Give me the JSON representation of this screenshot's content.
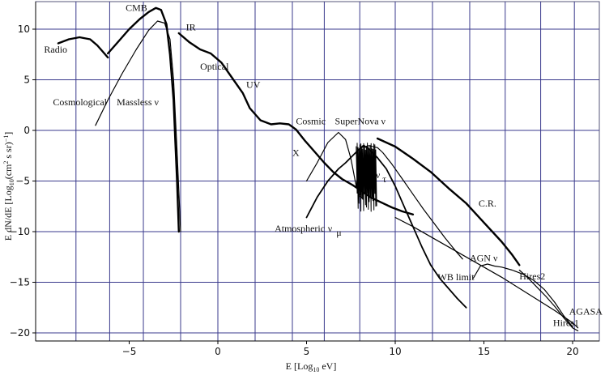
{
  "chart_data": {
    "type": "line",
    "xlabel": "E [Log10 eV]",
    "ylabel": "E dN/dE [Log10(cm^2 s sr)^-1]",
    "xlim": [
      -9.5,
      21
    ],
    "ylim": [
      -20.5,
      12.8
    ],
    "grid": true,
    "x_ticks": [
      {
        "value": -5,
        "label": "−5"
      },
      {
        "value": 0,
        "label": "0"
      },
      {
        "value": 5,
        "label": "5"
      },
      {
        "value": 10,
        "label": "10"
      },
      {
        "value": 15,
        "label": "15"
      },
      {
        "value": 20,
        "label": "20"
      }
    ],
    "y_ticks": [
      {
        "value": 10,
        "label": "10"
      },
      {
        "value": 5,
        "label": "5"
      },
      {
        "value": 0,
        "label": "0"
      },
      {
        "value": -5,
        "label": "−5"
      },
      {
        "value": -10,
        "label": "−10"
      },
      {
        "value": -15,
        "label": "−15"
      },
      {
        "value": -20,
        "label": "−20"
      }
    ],
    "grid_x": [
      -8,
      -6.1,
      -4.2,
      -2.1,
      0,
      2.1,
      4.2,
      6,
      8,
      10,
      12.1,
      14.2,
      16.2,
      18.2,
      20.1
    ],
    "grid_y": [
      10,
      5,
      0,
      -5,
      -10,
      -15,
      -20
    ],
    "series": [
      {
        "width": 2.4,
        "x": [
          -9,
          -8.4,
          -7.8,
          -7.2,
          -6.8,
          -6.5,
          -6.2
        ],
        "y": [
          8.6,
          9.0,
          9.2,
          9.0,
          8.4,
          7.8,
          7.2
        ]
      },
      {
        "width": 2.4,
        "x": [
          -6.2,
          -5.6,
          -5.0,
          -4.4,
          -3.9,
          -3.5,
          -3.2,
          -2.9,
          -2.7,
          -2.5,
          -2.4,
          -2.3,
          -2.2
        ],
        "y": [
          7.6,
          8.8,
          10.0,
          11.0,
          11.7,
          12.1,
          11.9,
          10.5,
          7.5,
          3.0,
          -1.0,
          -5.0,
          -10.0
        ]
      },
      {
        "width": 1.2,
        "x": [
          -6.9,
          -6.2,
          -5.4,
          -4.6,
          -3.9,
          -3.4,
          -3.0,
          -2.7,
          -2.5,
          -2.3,
          -2.1
        ],
        "y": [
          0.5,
          3.0,
          5.6,
          8.0,
          9.9,
          10.8,
          10.6,
          9.0,
          5.0,
          -2.0,
          -10.0
        ]
      },
      {
        "width": 2.4,
        "x": [
          -2.2,
          -1.6,
          -1.0,
          -0.4,
          0.2,
          0.8,
          1.4,
          1.8,
          2.4,
          3.0,
          3.5,
          4.0,
          4.4,
          4.9,
          5.4,
          6.0,
          6.5,
          7.0,
          7.6,
          8.2,
          8.6,
          9.2,
          9.8,
          10.4,
          11.0
        ],
        "y": [
          9.6,
          8.7,
          8.0,
          7.6,
          6.7,
          5.2,
          3.7,
          2.2,
          1.0,
          0.6,
          0.7,
          0.6,
          0.1,
          -1.0,
          -2.0,
          -3.2,
          -4.1,
          -4.8,
          -5.4,
          -6.1,
          -6.6,
          -7.1,
          -7.6,
          -8.0,
          -8.3
        ]
      },
      {
        "width": 1.2,
        "x": [
          5.0,
          5.6,
          6.2,
          6.8,
          7.2,
          7.5,
          7.8,
          8.0,
          8.2
        ],
        "y": [
          -5.0,
          -3.2,
          -1.2,
          -0.2,
          -0.9,
          -2.8,
          -5.5,
          -6.5,
          -6.8
        ]
      },
      {
        "width": 1.8,
        "x": [
          5.0,
          5.6,
          6.2,
          6.8,
          7.2,
          7.6,
          8.0,
          8.2,
          8.5,
          9.0,
          9.5,
          10.0,
          10.5,
          11.0,
          11.5,
          12.0,
          12.5,
          13.0,
          13.5,
          14.0
        ],
        "y": [
          -8.6,
          -6.6,
          -5.0,
          -3.8,
          -3.2,
          -2.5,
          -1.8,
          -1.5,
          -1.8,
          -2.7,
          -3.8,
          -5.5,
          -7.5,
          -9.5,
          -11.5,
          -13.3,
          -14.6,
          -15.6,
          -16.6,
          -17.5
        ]
      },
      {
        "width": 1.2,
        "x": [
          7.8,
          8.1,
          8.5,
          9.0,
          9.3,
          9.8,
          10.4,
          11.0,
          11.6,
          12.2,
          12.8,
          13.4,
          13.8
        ],
        "y": [
          -5.5,
          -1.7,
          -1.5,
          -1.7,
          -2.2,
          -3.3,
          -4.8,
          -6.3,
          -7.8,
          -9.2,
          -10.6,
          -11.9,
          -12.7
        ]
      },
      {
        "width": 2.4,
        "x": [
          9.0,
          10.0,
          11.0,
          12.0,
          13.0,
          14.0,
          15.0,
          16.0,
          16.6,
          17.0
        ],
        "y": [
          -0.8,
          -1.6,
          -2.8,
          -4.1,
          -5.7,
          -7.2,
          -9.1,
          -11.0,
          -12.3,
          -13.3
        ]
      },
      {
        "width": 1.2,
        "x": [
          10.0,
          11.0,
          12.0,
          13.0,
          14.0,
          15.0,
          16.0,
          17.0,
          18.0,
          19.0,
          20.0,
          20.3
        ],
        "y": [
          -8.6,
          -9.5,
          -10.5,
          -11.5,
          -12.5,
          -13.5,
          -14.5,
          -15.6,
          -16.7,
          -17.8,
          -19.0,
          -19.5
        ]
      },
      {
        "width": 1.2,
        "x": [
          14.4,
          14.8,
          15.2,
          15.6,
          16.0,
          16.6,
          17.2,
          17.8,
          18.4,
          19.0,
          19.5,
          20.0
        ],
        "y": [
          -14.6,
          -13.4,
          -13.2,
          -13.4,
          -13.5,
          -13.8,
          -14.2,
          -14.8,
          -15.7,
          -17.0,
          -18.3,
          -19.4
        ]
      },
      {
        "width": 1.2,
        "x": [
          17.0,
          17.5,
          18.0,
          18.5,
          19.0,
          19.5,
          20.0,
          20.3
        ],
        "y": [
          -13.8,
          -14.6,
          -15.5,
          -16.4,
          -17.4,
          -18.5,
          -19.5,
          -19.8
        ]
      }
    ],
    "spikes": {
      "x_from": 7.8,
      "x_to": 8.9,
      "count": 22,
      "y_top": -1.6,
      "y_bottom": -7.1
    },
    "annotations": [
      {
        "text": "CMB",
        "x": -5.2,
        "y": 11.8
      },
      {
        "text": "IR",
        "x": -1.8,
        "y": 9.9
      },
      {
        "text": "Radio",
        "x": -9.8,
        "y": 7.7
      },
      {
        "text": "Optical",
        "x": -1.0,
        "y": 6.0
      },
      {
        "text": "UV",
        "x": 1.6,
        "y": 4.2
      },
      {
        "text": "Cosmological",
        "x": -9.3,
        "y": 2.5
      },
      {
        "text": "Massless ν",
        "x": -5.7,
        "y": 2.5
      },
      {
        "text": "Cosmic",
        "x": 4.4,
        "y": 0.6
      },
      {
        "text": "SuperNova ν",
        "x": 6.6,
        "y": 0.6
      },
      {
        "text": "X",
        "x": 4.2,
        "y": -2.5
      },
      {
        "text": "ν",
        "x": 8.9,
        "y": -4.7
      },
      {
        "text": "τ",
        "x": 9.28,
        "y": -5.1
      },
      {
        "text": "C.R.",
        "x": 14.7,
        "y": -7.5
      },
      {
        "text": "Atmospheric",
        "x": 3.2,
        "y": -10.0
      },
      {
        "text": "ν",
        "x": 6.2,
        "y": -10.0
      },
      {
        "text": "μ",
        "x": 6.68,
        "y": -10.4
      },
      {
        "text": "AGN ν",
        "x": 14.2,
        "y": -12.9
      },
      {
        "text": "WB limit",
        "x": 12.4,
        "y": -14.8
      },
      {
        "text": "Hires2",
        "x": 17.0,
        "y": -14.7
      },
      {
        "text": "AGASA",
        "x": 19.8,
        "y": -18.2
      },
      {
        "text": "Hires1",
        "x": 18.9,
        "y": -19.3
      }
    ]
  }
}
